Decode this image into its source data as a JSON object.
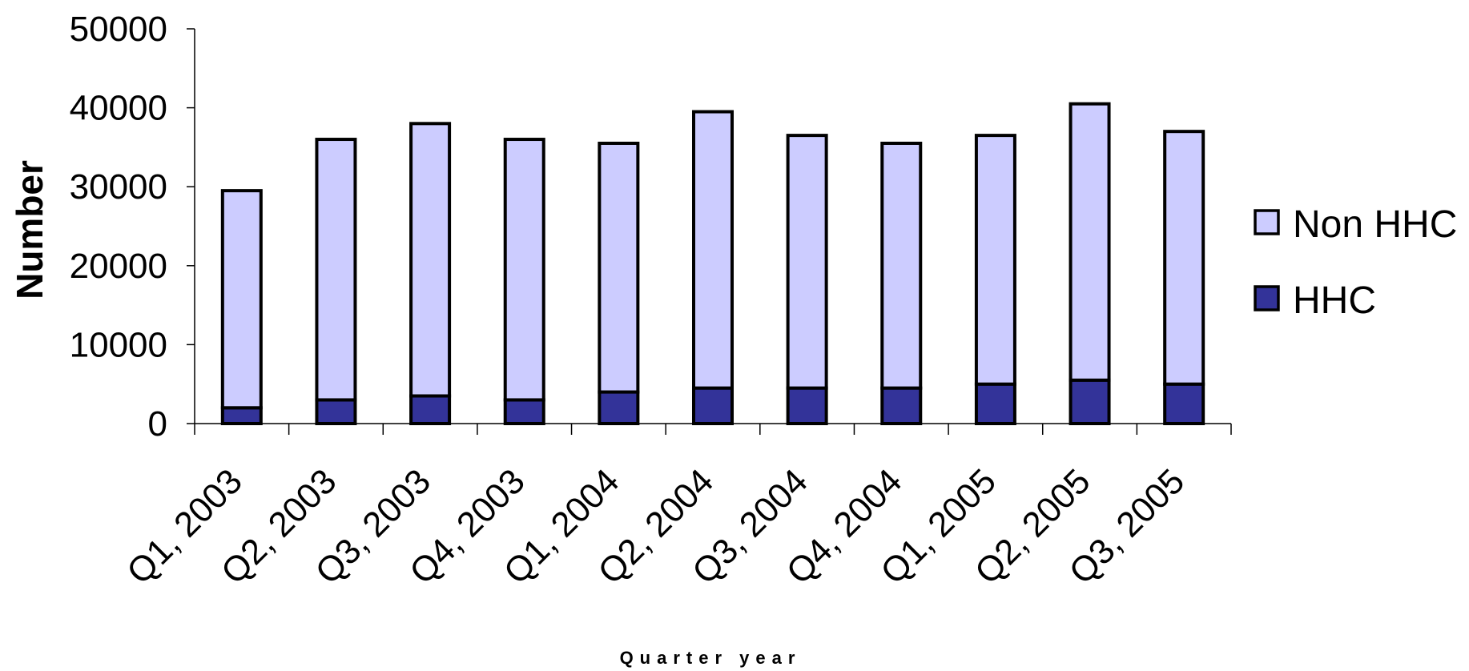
{
  "chart_data": {
    "type": "bar",
    "stacked": true,
    "categories": [
      "Q1, 2003",
      "Q2, 2003",
      "Q3, 2003",
      "Q4, 2003",
      "Q1, 2004",
      "Q2, 2004",
      "Q3, 2004",
      "Q4, 2004",
      "Q1, 2005",
      "Q2, 2005",
      "Q3, 2005"
    ],
    "series": [
      {
        "name": "HHC",
        "color": "#333399",
        "values": [
          2000,
          3000,
          3500,
          3000,
          4000,
          4500,
          4500,
          4500,
          5000,
          5500,
          5000
        ]
      },
      {
        "name": "Non HHC",
        "color": "#ccccff",
        "values": [
          27500,
          33000,
          34500,
          33000,
          31500,
          35000,
          32000,
          31000,
          31500,
          35000,
          32000
        ]
      }
    ],
    "legend_order": [
      "Non HHC",
      "HHC"
    ],
    "xlabel": "Quarter year",
    "ylabel": "Number",
    "ylim": [
      0,
      50000
    ],
    "yticks": [
      "0",
      "10000",
      "20000",
      "30000",
      "40000",
      "50000"
    ],
    "grid": false,
    "legend_position": "right"
  }
}
